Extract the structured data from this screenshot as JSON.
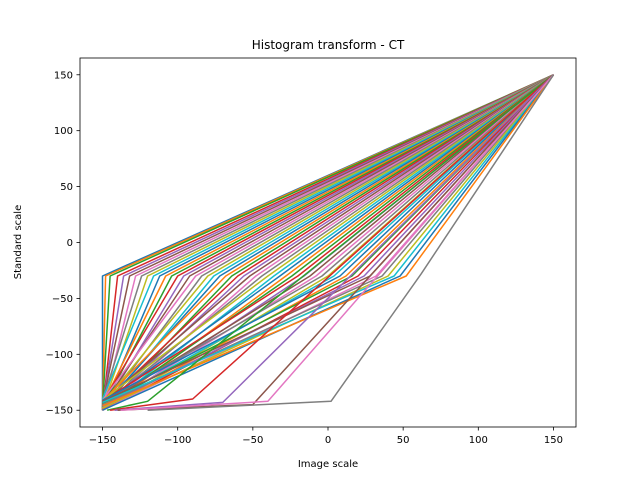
{
  "chart_data": {
    "type": "line",
    "title": "Histogram transform - CT",
    "xlabel": "Image scale",
    "ylabel": "Standard scale",
    "xlim": [
      -165,
      165
    ],
    "ylim": [
      -165,
      165
    ],
    "xticks": [
      -150,
      -100,
      -50,
      0,
      50,
      100,
      150
    ],
    "yticks": [
      -150,
      -100,
      -50,
      0,
      50,
      100,
      150
    ],
    "grid": false,
    "legend": "none",
    "palette": [
      "#1f77b4",
      "#ff7f0e",
      "#2ca02c",
      "#d62728",
      "#9467bd",
      "#8c564b",
      "#e377c2",
      "#7f7f7f",
      "#bcbd22",
      "#17becf"
    ],
    "series": [
      {
        "x": [
          -150,
          -150,
          150
        ],
        "y": [
          -150,
          -30,
          150
        ]
      },
      {
        "x": [
          -150,
          -148,
          150
        ],
        "y": [
          -150,
          -30,
          150
        ]
      },
      {
        "x": [
          -150,
          -145,
          150
        ],
        "y": [
          -148,
          -30,
          150
        ]
      },
      {
        "x": [
          -150,
          -140,
          150
        ],
        "y": [
          -150,
          -30,
          150
        ]
      },
      {
        "x": [
          -150,
          -136,
          150
        ],
        "y": [
          -146,
          -30,
          150
        ]
      },
      {
        "x": [
          -150,
          -132,
          150
        ],
        "y": [
          -144,
          -30,
          150
        ]
      },
      {
        "x": [
          -150,
          -128,
          150
        ],
        "y": [
          -150,
          -30,
          150
        ]
      },
      {
        "x": [
          -150,
          -124,
          150
        ],
        "y": [
          -142,
          -30,
          150
        ]
      },
      {
        "x": [
          -150,
          -120,
          150
        ],
        "y": [
          -148,
          -30,
          150
        ]
      },
      {
        "x": [
          -150,
          -116,
          150
        ],
        "y": [
          -140,
          -30,
          150
        ]
      },
      {
        "x": [
          -150,
          -112,
          150
        ],
        "y": [
          -150,
          -30,
          150
        ]
      },
      {
        "x": [
          -150,
          -108,
          150
        ],
        "y": [
          -145,
          -30,
          150
        ]
      },
      {
        "x": [
          -150,
          -104,
          150
        ],
        "y": [
          -148,
          -30,
          150
        ]
      },
      {
        "x": [
          -150,
          -100,
          150
        ],
        "y": [
          -143,
          -30,
          150
        ]
      },
      {
        "x": [
          -150,
          -96,
          150
        ],
        "y": [
          -150,
          -30,
          150
        ]
      },
      {
        "x": [
          -150,
          -92,
          150
        ],
        "y": [
          -146,
          -30,
          150
        ]
      },
      {
        "x": [
          -150,
          -88,
          150
        ],
        "y": [
          -141,
          -30,
          150
        ]
      },
      {
        "x": [
          -150,
          -84,
          150
        ],
        "y": [
          -149,
          -30,
          150
        ]
      },
      {
        "x": [
          -150,
          -80,
          150
        ],
        "y": [
          -144,
          -30,
          150
        ]
      },
      {
        "x": [
          -150,
          -76,
          150
        ],
        "y": [
          -150,
          -30,
          150
        ]
      },
      {
        "x": [
          -150,
          -72,
          150
        ],
        "y": [
          -147,
          -30,
          150
        ]
      },
      {
        "x": [
          -150,
          -68,
          150
        ],
        "y": [
          -142,
          -30,
          150
        ]
      },
      {
        "x": [
          -150,
          -64,
          150
        ],
        "y": [
          -150,
          -30,
          150
        ]
      },
      {
        "x": [
          -150,
          -60,
          150
        ],
        "y": [
          -145,
          -30,
          150
        ]
      },
      {
        "x": [
          -150,
          -56,
          150
        ],
        "y": [
          -148,
          -30,
          150
        ]
      },
      {
        "x": [
          -150,
          -52,
          150
        ],
        "y": [
          -143,
          -30,
          150
        ]
      },
      {
        "x": [
          -150,
          -48,
          150
        ],
        "y": [
          -150,
          -30,
          150
        ]
      },
      {
        "x": [
          -150,
          -44,
          150
        ],
        "y": [
          -146,
          -30,
          150
        ]
      },
      {
        "x": [
          -150,
          -40,
          150
        ],
        "y": [
          -141,
          -30,
          150
        ]
      },
      {
        "x": [
          -150,
          -36,
          150
        ],
        "y": [
          -149,
          -30,
          150
        ]
      },
      {
        "x": [
          -150,
          -32,
          150
        ],
        "y": [
          -144,
          -30,
          150
        ]
      },
      {
        "x": [
          -150,
          -28,
          150
        ],
        "y": [
          -150,
          -30,
          150
        ]
      },
      {
        "x": [
          -150,
          -24,
          150
        ],
        "y": [
          -147,
          -30,
          150
        ]
      },
      {
        "x": [
          -150,
          -20,
          150
        ],
        "y": [
          -142,
          -30,
          150
        ]
      },
      {
        "x": [
          -150,
          -16,
          150
        ],
        "y": [
          -150,
          -30,
          150
        ]
      },
      {
        "x": [
          -150,
          -12,
          150
        ],
        "y": [
          -145,
          -30,
          150
        ]
      },
      {
        "x": [
          -150,
          -8,
          150
        ],
        "y": [
          -148,
          -30,
          150
        ]
      },
      {
        "x": [
          -150,
          -4,
          150
        ],
        "y": [
          -143,
          -30,
          150
        ]
      },
      {
        "x": [
          -150,
          0,
          150
        ],
        "y": [
          -150,
          -30,
          150
        ]
      },
      {
        "x": [
          -150,
          4,
          150
        ],
        "y": [
          -146,
          -30,
          150
        ]
      },
      {
        "x": [
          -150,
          8,
          150
        ],
        "y": [
          -141,
          -30,
          150
        ]
      },
      {
        "x": [
          -150,
          12,
          150
        ],
        "y": [
          -149,
          -30,
          150
        ]
      },
      {
        "x": [
          -150,
          16,
          150
        ],
        "y": [
          -144,
          -30,
          150
        ]
      },
      {
        "x": [
          -150,
          20,
          150
        ],
        "y": [
          -150,
          -30,
          150
        ]
      },
      {
        "x": [
          -150,
          24,
          150
        ],
        "y": [
          -147,
          -30,
          150
        ]
      },
      {
        "x": [
          -150,
          28,
          150
        ],
        "y": [
          -142,
          -30,
          150
        ]
      },
      {
        "x": [
          -150,
          32,
          150
        ],
        "y": [
          -150,
          -30,
          150
        ]
      },
      {
        "x": [
          -150,
          36,
          150
        ],
        "y": [
          -145,
          -30,
          150
        ]
      },
      {
        "x": [
          -150,
          40,
          150
        ],
        "y": [
          -148,
          -30,
          150
        ]
      },
      {
        "x": [
          -150,
          44,
          150
        ],
        "y": [
          -143,
          -30,
          150
        ]
      },
      {
        "x": [
          -150,
          48,
          150
        ],
        "y": [
          -150,
          -30,
          150
        ]
      },
      {
        "x": [
          -150,
          52,
          150
        ],
        "y": [
          -146,
          -30,
          150
        ]
      },
      {
        "x": [
          -147,
          -120,
          150
        ],
        "y": [
          -150,
          -142,
          150
        ]
      },
      {
        "x": [
          -145,
          -90,
          150
        ],
        "y": [
          -150,
          -140,
          150
        ]
      },
      {
        "x": [
          -142,
          -70,
          150
        ],
        "y": [
          -150,
          -143,
          150
        ]
      },
      {
        "x": [
          -140,
          -50,
          150
        ],
        "y": [
          -150,
          -145,
          150
        ]
      },
      {
        "x": [
          -138,
          -40,
          150
        ],
        "y": [
          -150,
          -142,
          150
        ]
      },
      {
        "x": [
          -120,
          2,
          62,
          150
        ],
        "y": [
          -150,
          -142,
          -28,
          150
        ]
      }
    ]
  }
}
